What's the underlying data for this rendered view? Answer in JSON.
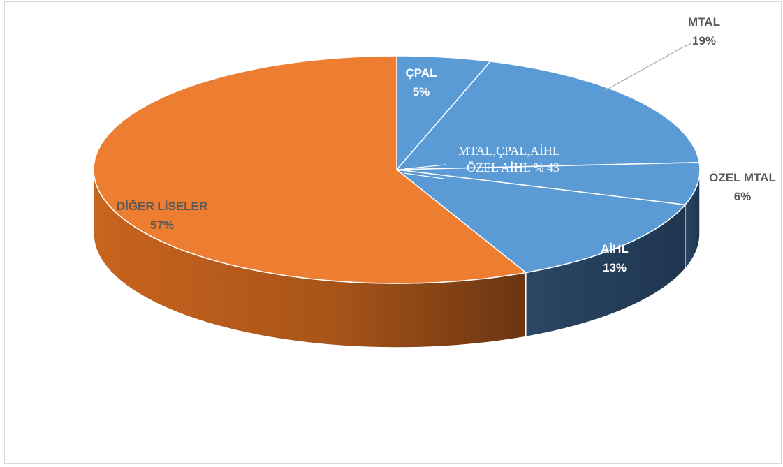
{
  "chart_data": {
    "type": "pie",
    "slices": [
      {
        "label": "ÇPAL",
        "value": 5,
        "display": "5%",
        "color": "#5b9bd5"
      },
      {
        "label": "MTAL",
        "value": 19,
        "display": "19%",
        "color": "#5b9bd5"
      },
      {
        "label": "ÖZEL MTAL",
        "value": 6,
        "display": "6%",
        "color": "#5b9bd5"
      },
      {
        "label": "AİHL",
        "value": 13,
        "display": "13%",
        "color": "#5b9bd5"
      },
      {
        "label": "DİĞER LİSELER",
        "value": 57,
        "display": "57%",
        "color": "#ed7d31"
      }
    ],
    "annotation": {
      "line1": "MTAL,ÇPAL,AİHL",
      "line2": "ÖZEL AİHL % 43"
    }
  }
}
